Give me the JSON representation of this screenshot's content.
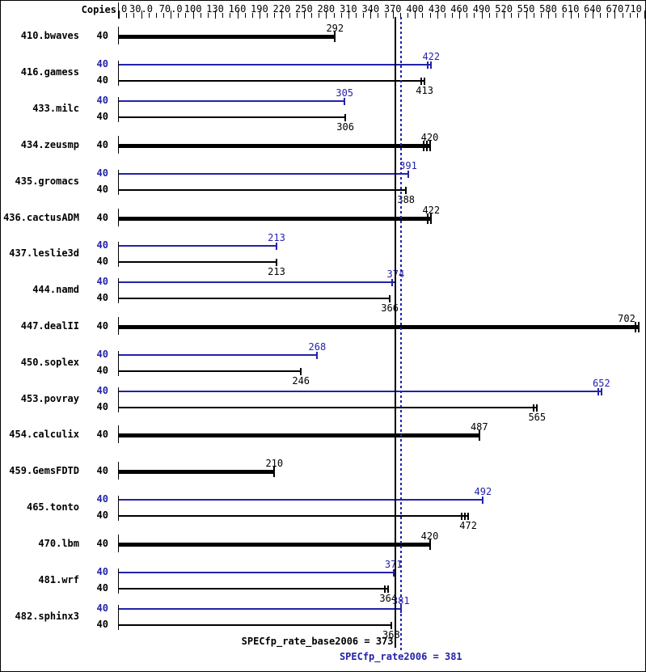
{
  "header": {
    "copies_label": "Copies"
  },
  "colors": {
    "peak_blue": "#2222aa",
    "base_black": "#000000",
    "background": "#ffffff"
  },
  "chart_data": {
    "type": "bar",
    "orientation": "horizontal",
    "axis": {
      "ticks": [
        0,
        30,
        70,
        100,
        130,
        160,
        190,
        220,
        250,
        280,
        310,
        340,
        370,
        400,
        430,
        460,
        490,
        520,
        550,
        580,
        610,
        640,
        670,
        710
      ],
      "tick_labels": [
        "0",
        "30.0",
        "70.0",
        "100",
        "130",
        "160",
        "190",
        "220",
        "250",
        "280",
        "310",
        "340",
        "370",
        "400",
        "430",
        "460",
        "490",
        "520",
        "550",
        "580",
        "610",
        "640",
        "670",
        "710"
      ],
      "minor_step": 10,
      "xlim": [
        0,
        718
      ]
    },
    "benchmarks": [
      {
        "name": "410.bwaves",
        "copies": 40,
        "peak": null,
        "base": 292,
        "peak_marks": 0,
        "base_marks": 1
      },
      {
        "name": "416.gamess",
        "copies": 40,
        "peak": 422,
        "base": 413,
        "peak_marks": 2,
        "base_marks": 2
      },
      {
        "name": "433.milc",
        "copies": 40,
        "peak": 305,
        "base": 306,
        "peak_marks": 1,
        "base_marks": 1
      },
      {
        "name": "434.zeusmp",
        "copies": 40,
        "peak": null,
        "base": 420,
        "peak_marks": 0,
        "base_marks": 3
      },
      {
        "name": "435.gromacs",
        "copies": 40,
        "peak": 391,
        "base": 388,
        "peak_marks": 1,
        "base_marks": 1
      },
      {
        "name": "436.cactusADM",
        "copies": 40,
        "peak": null,
        "base": 422,
        "peak_marks": 0,
        "base_marks": 2
      },
      {
        "name": "437.leslie3d",
        "copies": 40,
        "peak": 213,
        "base": 213,
        "peak_marks": 1,
        "base_marks": 1
      },
      {
        "name": "444.namd",
        "copies": 40,
        "peak": 374,
        "base": 366,
        "peak_marks": 2,
        "base_marks": 1
      },
      {
        "name": "447.dealII",
        "copies": 40,
        "peak": null,
        "base": 702,
        "peak_marks": 0,
        "base_marks": 2
      },
      {
        "name": "450.soplex",
        "copies": 40,
        "peak": 268,
        "base": 246,
        "peak_marks": 1,
        "base_marks": 1
      },
      {
        "name": "453.povray",
        "copies": 40,
        "peak": 652,
        "base": 565,
        "peak_marks": 2,
        "base_marks": 2
      },
      {
        "name": "454.calculix",
        "copies": 40,
        "peak": null,
        "base": 487,
        "peak_marks": 0,
        "base_marks": 1
      },
      {
        "name": "459.GemsFDTD",
        "copies": 40,
        "peak": null,
        "base": 210,
        "peak_marks": 0,
        "base_marks": 1
      },
      {
        "name": "465.tonto",
        "copies": 40,
        "peak": 492,
        "base": 472,
        "peak_marks": 1,
        "base_marks": 3
      },
      {
        "name": "470.lbm",
        "copies": 40,
        "peak": null,
        "base": 420,
        "peak_marks": 0,
        "base_marks": 1
      },
      {
        "name": "481.wrf",
        "copies": 40,
        "peak": 371,
        "base": 364,
        "peak_marks": 1,
        "base_marks": 2
      },
      {
        "name": "482.sphinx3",
        "copies": 40,
        "peak": 381,
        "base": 368,
        "peak_marks": 1,
        "base_marks": 1
      }
    ],
    "summary": {
      "base_label": "SPECfp_rate_base2006 = 373",
      "base_value": 373,
      "peak_label": "SPECfp_rate2006 = 381",
      "peak_value": 381
    }
  }
}
